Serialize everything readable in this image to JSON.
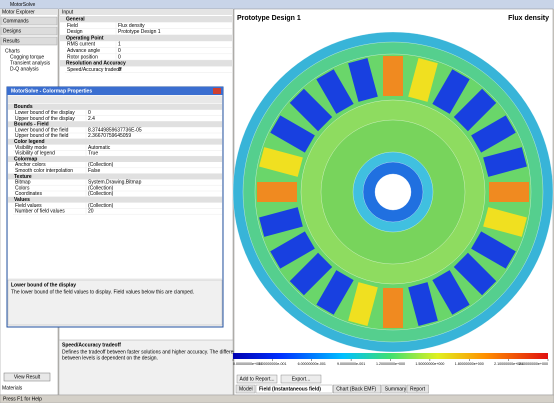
{
  "window": {
    "title": "MotorSolve"
  },
  "explorer": {
    "title": "Motor Explorer",
    "sections": [
      "Commands",
      "Designs",
      "Results"
    ],
    "tree": [
      "Charts",
      "Cogging torque",
      "Transient analysis",
      "D-Q analysis"
    ],
    "button": "View Result",
    "footer": "Materials"
  },
  "input": {
    "title": "Input",
    "groups": [
      {
        "name": "General",
        "rows": [
          [
            "Field",
            "Flux density"
          ],
          [
            "Design",
            "Prototype Design 1"
          ]
        ]
      },
      {
        "name": "Operating Point",
        "rows": [
          [
            "RMS current",
            1
          ],
          [
            "Advance angle",
            0
          ],
          [
            "Rotor position",
            0
          ]
        ]
      },
      {
        "name": "Resolution and Accuracy",
        "rows": [
          [
            "Speed/Accuracy tradeoff",
            0
          ]
        ]
      }
    ],
    "help_title": "Speed/Accuracy tradeoff",
    "help_text": [
      "Defines the tradeoff between faster solutions and higher accuracy. The difference",
      "between levels is dependent on the design."
    ]
  },
  "dialog": {
    "title": "MotorSolve - Colormap Properties",
    "groups": [
      {
        "name": "Bounds",
        "rows": [
          [
            "Lower bound of the display",
            0
          ],
          [
            "Upper bound of the display",
            2.4
          ]
        ]
      },
      {
        "name": "Bounds - Field",
        "rows": [
          [
            "Lower bound of the field",
            "8.37449859637736E-05"
          ],
          [
            "Upper bound of the field",
            "2.36670759645059"
          ]
        ]
      },
      {
        "name": "Color legend",
        "rows": [
          [
            "Visibility mode",
            "Automatic"
          ],
          [
            "Visibility of legend",
            "True"
          ]
        ]
      },
      {
        "name": "Colormap",
        "rows": [
          [
            "Anchor colors",
            "(Collection)"
          ],
          [
            "Smooth color interpolation",
            "False"
          ]
        ]
      },
      {
        "name": "Texture",
        "rows": [
          [
            "Bitmap",
            "System.Drawing.Bitmap"
          ],
          [
            "Colors",
            "(Collection)"
          ],
          [
            "Coordinates",
            "(Collection)"
          ]
        ]
      },
      {
        "name": "Values",
        "rows": [
          [
            "Field values",
            "(Collection)"
          ],
          [
            "Number of field values",
            20
          ]
        ]
      }
    ],
    "help_title": "Lower bound of the display",
    "help_text": "The lower bound of the field values to display. Field values below this are clamped."
  },
  "view": {
    "title": "Prototype Design 1",
    "field": "Flux density",
    "colorbar": {
      "lim": [
        0,
        2.4
      ],
      "ticks": [
        {
          "value": 0,
          "label": "0.00000000e+000"
        },
        {
          "value": 0.3,
          "label": "3.00000000e-001"
        },
        {
          "value": 0.6,
          "label": "6.00000000e-001"
        },
        {
          "value": 0.9,
          "label": "9.00000000e-001"
        },
        {
          "value": 1.2,
          "label": "1.20000000e+000"
        },
        {
          "value": 1.5,
          "label": "1.50000000e+000"
        },
        {
          "value": 1.8,
          "label": "1.80000000e+000"
        },
        {
          "value": 2.1,
          "label": "2.10000000e+000"
        },
        {
          "value": 2.4,
          "label": "2.40000000e+000"
        }
      ]
    },
    "buttons": [
      "Add to Report...",
      "Export..."
    ],
    "tabs": [
      "Model",
      "Field (Instantaneous field)",
      "Chart (Back EMF)",
      "Summary",
      "Report"
    ]
  },
  "status": "Press F1 for Help"
}
